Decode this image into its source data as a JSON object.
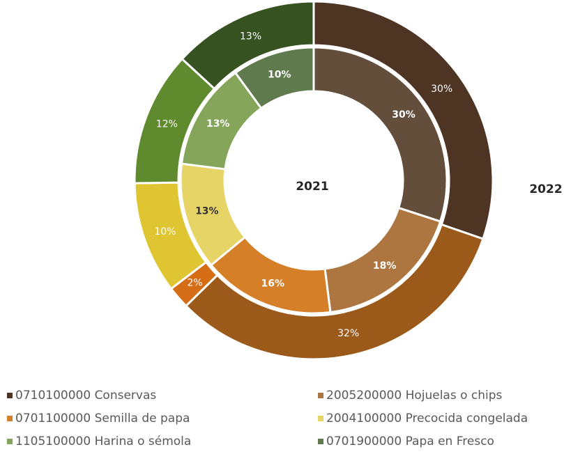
{
  "chart_data": {
    "type": "donut",
    "categories": [
      "0710100000 Conservas",
      "2005200000 Hojuelas o chips",
      "0701100000 Semilla de papa",
      "2004100000 Precocida congelada",
      "1105100000 Harina o sémola",
      "0701900000 Papa en Fresco"
    ],
    "legend_colors": [
      "#4e3423",
      "#ad7641",
      "#d67f29",
      "#e6d466",
      "#84a55a",
      "#5f7a4c"
    ],
    "series": [
      {
        "name": "2021",
        "ring": "inner",
        "colors": [
          "#634e3c",
          "#ad7641",
          "#d67f29",
          "#e6d466",
          "#84a55a",
          "#5f7a4c"
        ],
        "values": [
          30,
          18,
          16,
          13,
          13,
          10
        ],
        "value_labels": [
          "30%",
          "18%",
          "16%",
          "13%",
          "13%",
          "10%"
        ]
      },
      {
        "name": "2022",
        "ring": "outer",
        "colors": [
          "#4e3423",
          "#9c5a1a",
          "#d46d16",
          "#dfc531",
          "#5f8a2d",
          "#355220"
        ],
        "values": [
          30,
          32,
          2,
          10,
          12,
          13
        ],
        "value_labels": [
          "30%",
          "32%",
          "2%",
          "10%",
          "12%",
          "13%"
        ]
      }
    ]
  }
}
